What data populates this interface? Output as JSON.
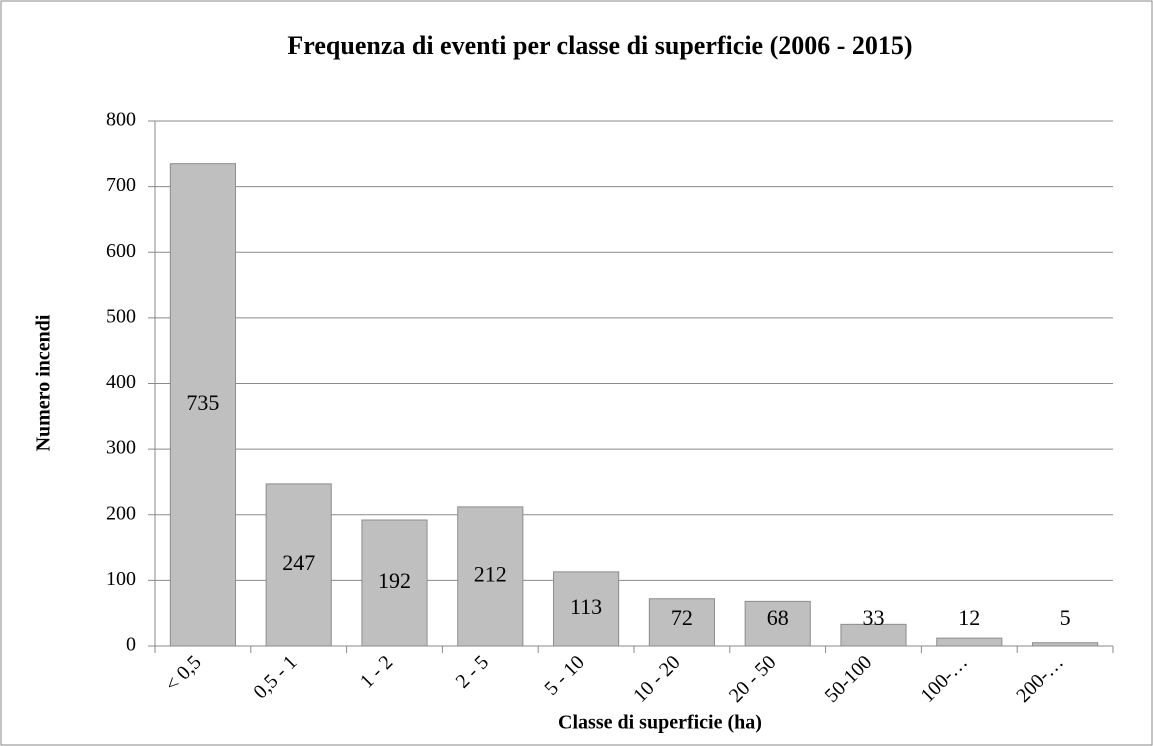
{
  "chart_data": {
    "type": "bar",
    "title": "Frequenza di eventi per classe di superficie (2006 - 2015)",
    "x_label": "Classe di superficie (ha)",
    "y_label": "Numero incendi",
    "categories": [
      "< 0,5",
      "0,5 - 1",
      "1 - 2",
      "2 - 5",
      "5 - 10",
      "10 - 20",
      "20 - 50",
      "50-100",
      "100-…",
      "200-…"
    ],
    "values": [
      735,
      247,
      192,
      212,
      113,
      72,
      68,
      33,
      12,
      5
    ],
    "color": "#bfbfbf",
    "ylim": [
      0,
      800
    ],
    "yticks": [
      0,
      100,
      200,
      300,
      400,
      500,
      600,
      700,
      800
    ],
    "grid": true
  }
}
